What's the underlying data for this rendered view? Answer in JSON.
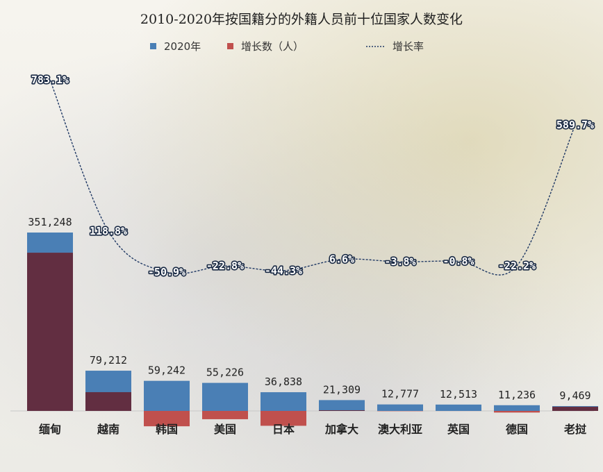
{
  "chart_data": {
    "type": "bar",
    "title": "2010-2020年按国籍分的外籍人员前十位国家人数变化",
    "categories": [
      "缅甸",
      "越南",
      "韩国",
      "美国",
      "日本",
      "加拿大",
      "澳大利亚",
      "英国",
      "德国",
      "老挝"
    ],
    "series": [
      {
        "name": "2020年",
        "color": "#4a7fb5",
        "values": [
          351248,
          79212,
          59242,
          55226,
          36838,
          21309,
          12777,
          12513,
          11236,
          9469
        ],
        "labels": [
          "351,248",
          "79,212",
          "59,242",
          "55,226",
          "36,838",
          "21,309",
          "12,777",
          "12,513",
          "11,236",
          "9,469"
        ]
      },
      {
        "name": "增长数（人）",
        "color": "#c0504d",
        "values": [
          311448,
          36932,
          -30258,
          -16326,
          -29280,
          1320,
          -508,
          -101,
          -3202,
          8095
        ]
      },
      {
        "name": "增长率",
        "type": "line",
        "color": "#1f3864",
        "values": [
          783.1,
          118.8,
          -50.9,
          -22.8,
          -44.3,
          6.6,
          -3.8,
          -0.8,
          -22.2,
          589.7
        ],
        "labels": [
          "783.1%",
          "118.8%",
          "-50.9%",
          "-22.8%",
          "-44.3%",
          "6.6%",
          "-3.8%",
          "-0.8%",
          "-22.2%",
          "589.7%"
        ]
      }
    ],
    "overlap_color": "#5a2a3e",
    "legend_position": "top-center",
    "grid": false
  }
}
